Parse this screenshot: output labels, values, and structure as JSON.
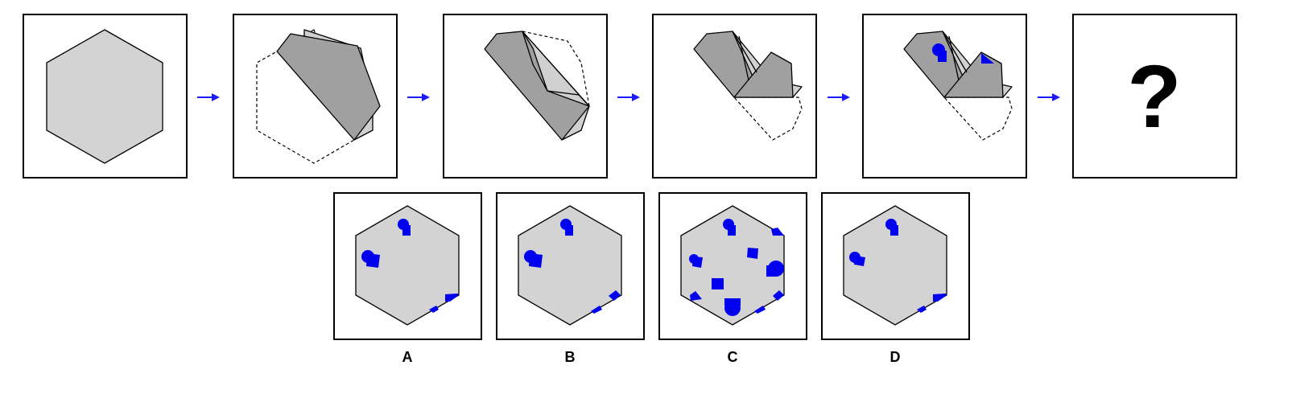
{
  "question_mark": "?",
  "options": [
    {
      "label": "A"
    },
    {
      "label": "B"
    },
    {
      "label": "C"
    },
    {
      "label": "D"
    }
  ],
  "colors": {
    "paper": "#d3d3d3",
    "folded_paper": "#a0a0a0",
    "cut_marks": "#0000ee",
    "arrows": "#1a1aff"
  }
}
